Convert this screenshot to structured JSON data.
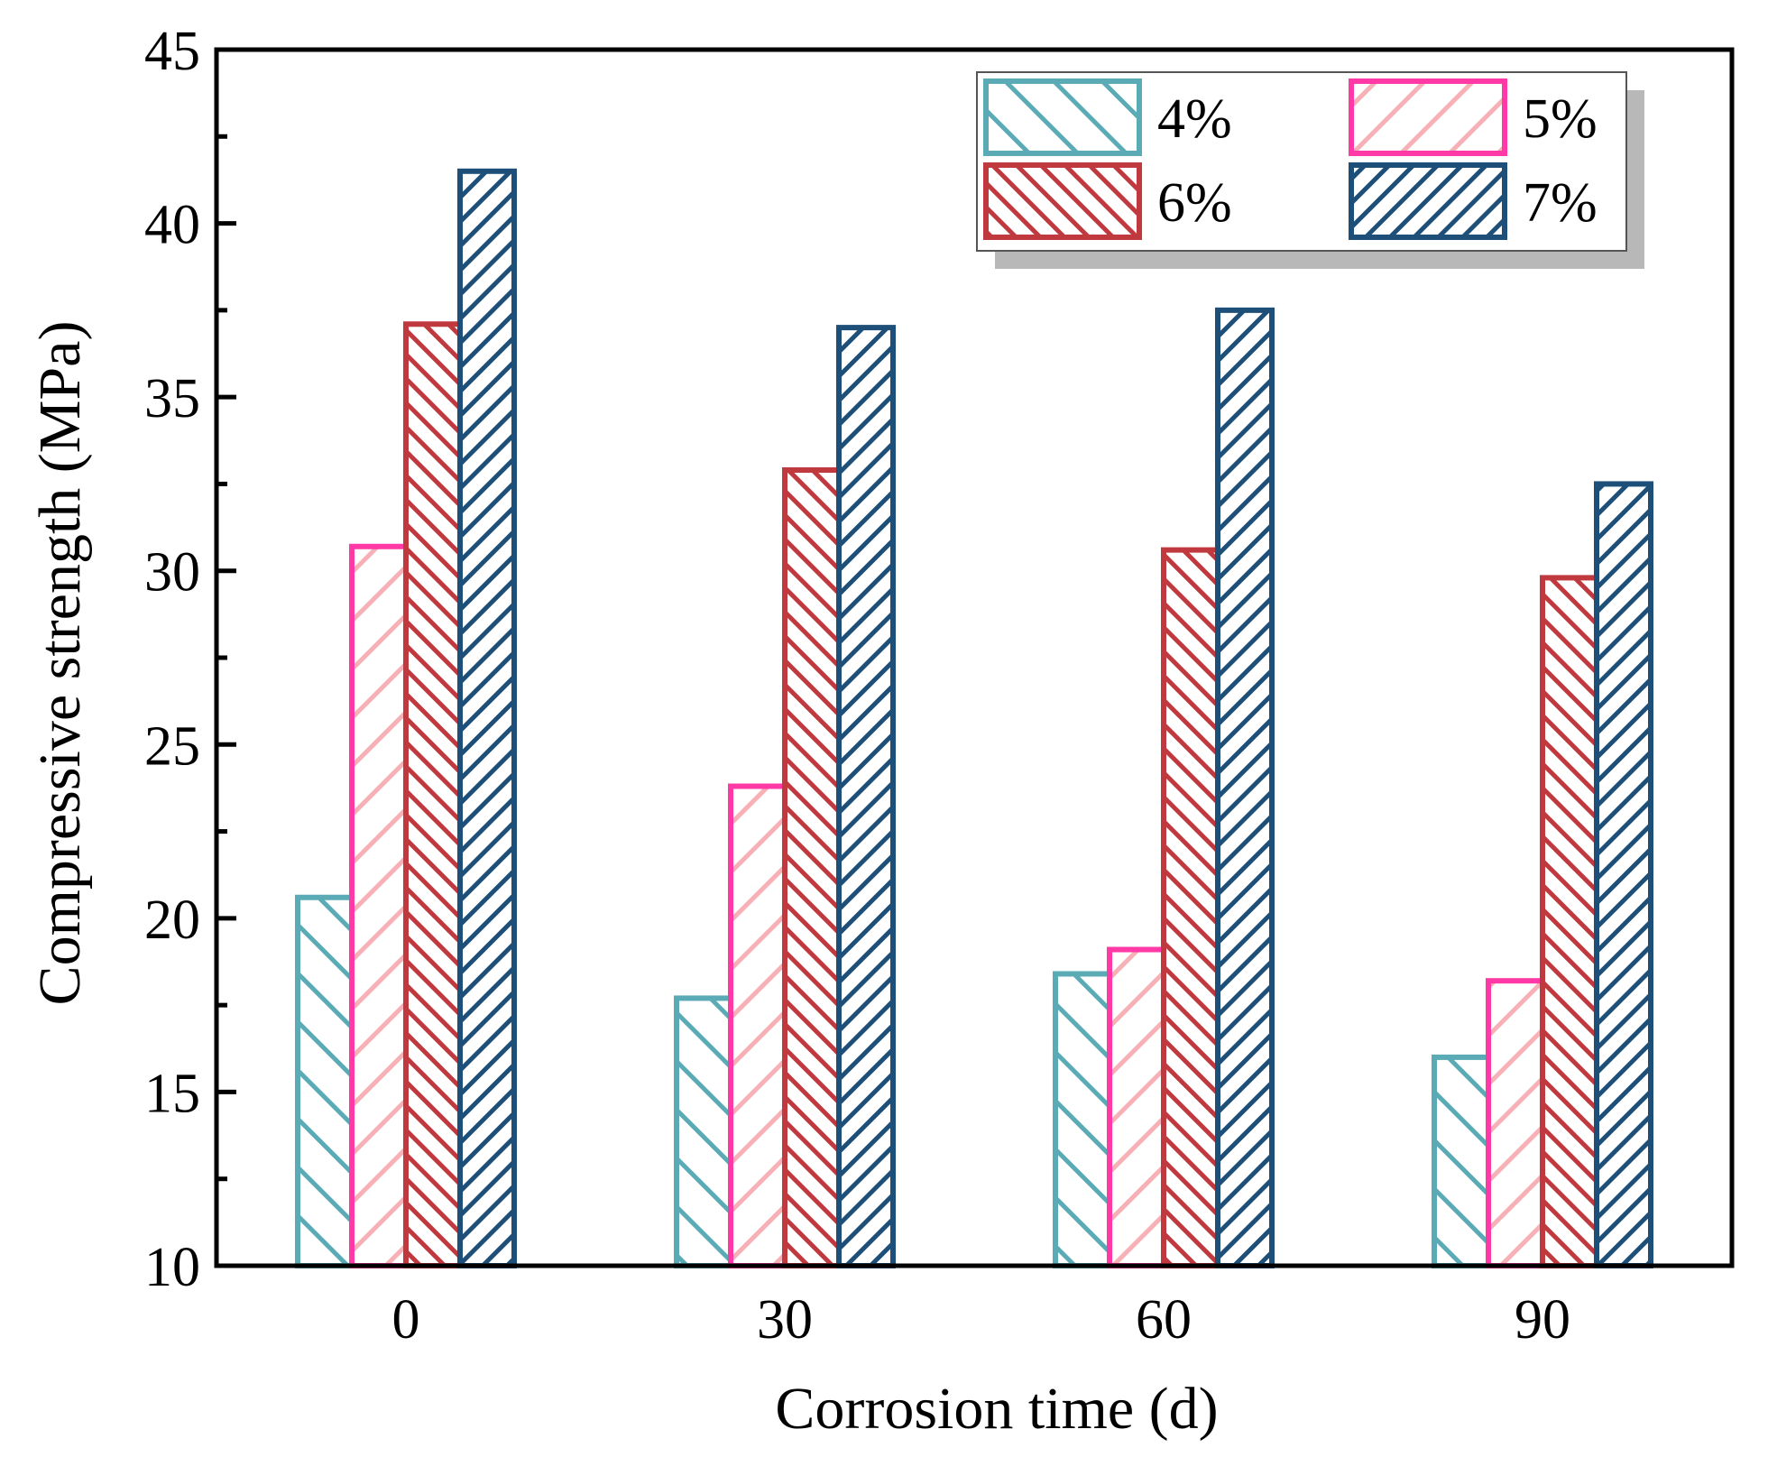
{
  "chart_data": {
    "type": "bar",
    "xlabel": "Corrosion time (d)",
    "ylabel": "Compressive strength (MPa)",
    "categories": [
      "0",
      "30",
      "60",
      "90"
    ],
    "ylim": [
      10,
      45
    ],
    "yticks": [
      10,
      15,
      20,
      25,
      30,
      35,
      40,
      45
    ],
    "grid": false,
    "legend_position": "top-right",
    "series": [
      {
        "name": "4%",
        "values": [
          20.6,
          17.7,
          18.4,
          16.0
        ],
        "color": "#5aabb5",
        "hatch": "backslash",
        "fill_opacity": 1
      },
      {
        "name": "5%",
        "values": [
          30.7,
          23.8,
          19.1,
          18.2
        ],
        "color": "#ff3aa6",
        "hatch_color": "#f7b0b5",
        "hatch": "slash",
        "fill_opacity": 1
      },
      {
        "name": "6%",
        "values": [
          37.1,
          32.9,
          30.6,
          29.8
        ],
        "color": "#c0393f",
        "hatch": "backslash-dense",
        "fill_opacity": 1
      },
      {
        "name": "7%",
        "values": [
          41.5,
          37.0,
          37.5,
          32.5
        ],
        "color": "#1d4f78",
        "hatch": "slash-dense",
        "fill_opacity": 1
      }
    ]
  }
}
